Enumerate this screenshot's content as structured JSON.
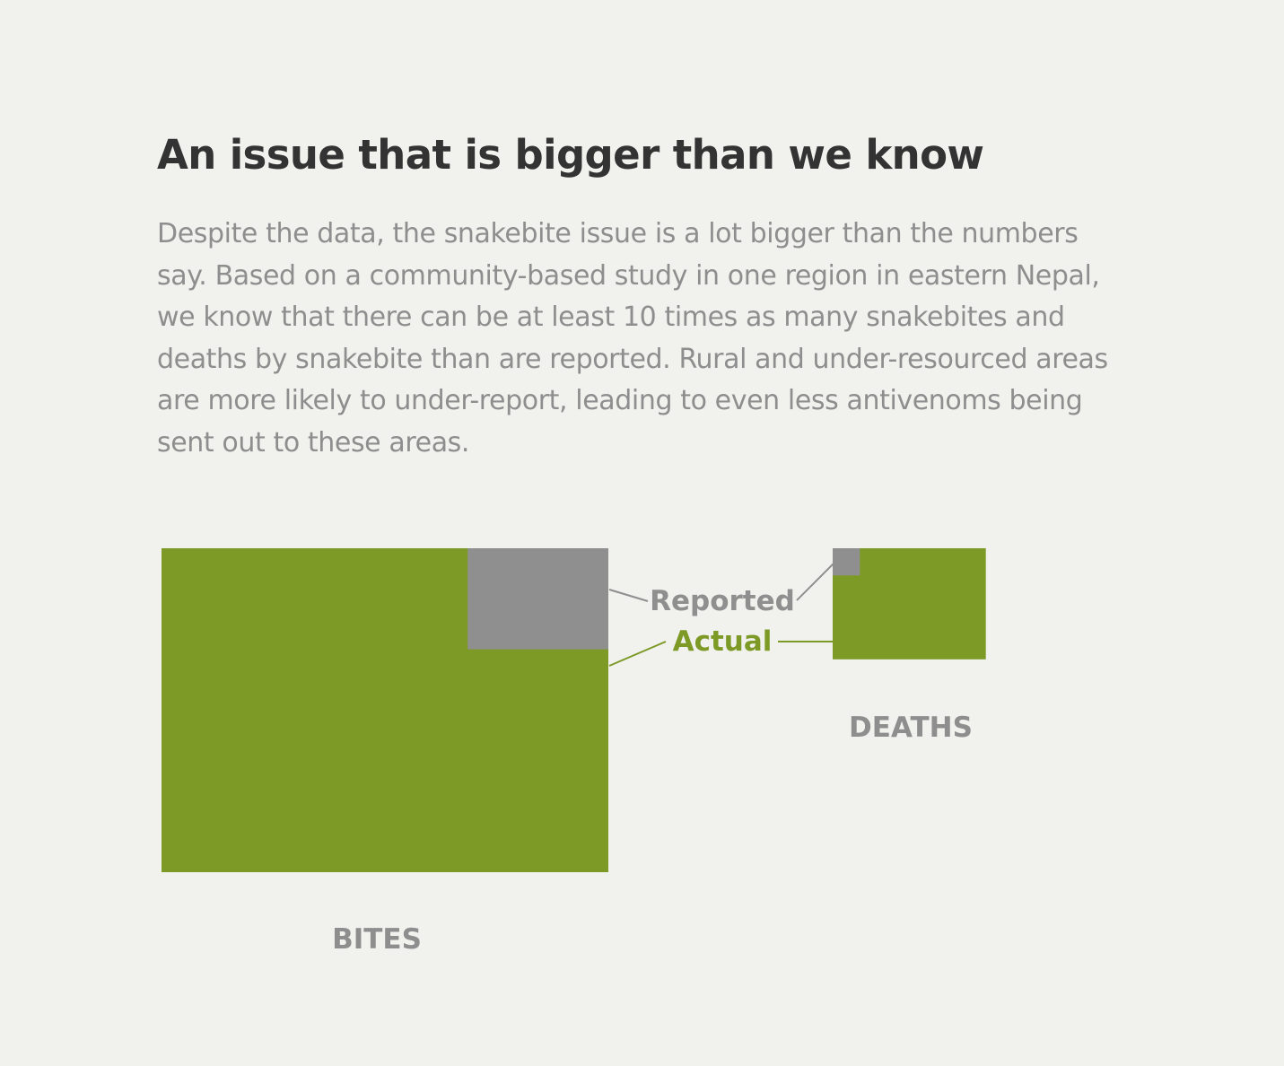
{
  "page": {
    "title": "An issue that is bigger than we know",
    "body": "Despite the data, the snakebite issue is a lot bigger than the numbers say. Based on a community-based study in one region in eastern Nepal, we know that there can be at least 10 times as many snakebites and deaths by snakebite than are reported. Rural and under-resourced areas are more likely to under-report, leading to even less antivenoms being sent out to these areas."
  },
  "chart_data": {
    "type": "area",
    "encoding": "nested squares, area proportional to count",
    "panels": [
      {
        "label": "BITES",
        "actual_relative_area": 1.0,
        "reported_relative_area": 0.0982
      },
      {
        "label": "DEATHS",
        "actual_relative_area": 0.1175,
        "reported_relative_area": 0.0051
      }
    ],
    "legend": {
      "reported": "Reported",
      "actual": "Actual"
    },
    "colors": {
      "actual": "#7e9a26",
      "reported": "#8f8f8f",
      "title": "#333333",
      "body": "#8e8e8e",
      "panel_label": "#8e8e8e",
      "background": "#f1f1ee"
    }
  }
}
